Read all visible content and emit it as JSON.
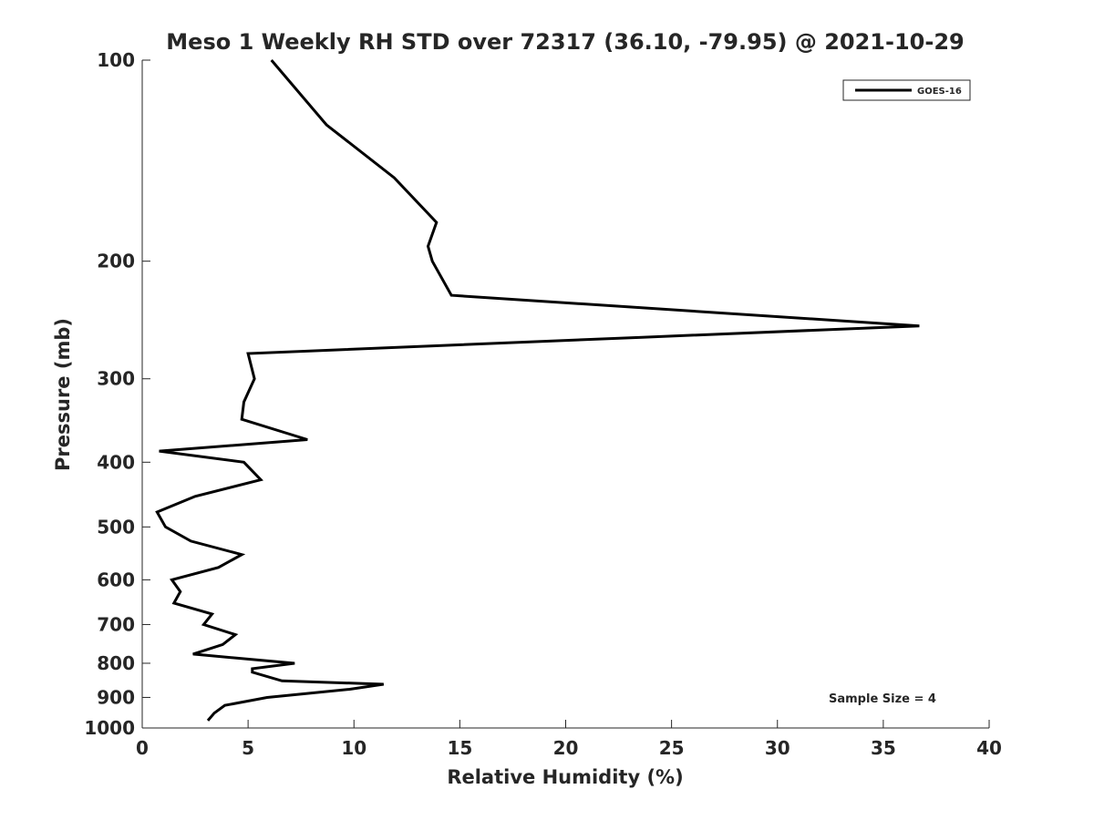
{
  "chart_data": {
    "type": "line",
    "title": "Meso 1 Weekly RH STD over 72317 (36.10, -79.95) @ 2021-10-29",
    "xlabel": "Relative Humidity (%)",
    "ylabel": "Pressure (mb)",
    "xlim": [
      0,
      40
    ],
    "ylim": [
      100,
      1000
    ],
    "y_scale": "log",
    "y_reversed": true,
    "grid": false,
    "legend_position": "top-right",
    "x_ticks": [
      "0",
      "5",
      "10",
      "15",
      "20",
      "25",
      "30",
      "35",
      "40"
    ],
    "y_ticks": [
      "100",
      "200",
      "300",
      "400",
      "500",
      "600",
      "700",
      "800",
      "900",
      "1000"
    ],
    "annotation": "Sample Size = 4",
    "series": [
      {
        "name": "GOES-16",
        "color": "#000000",
        "points": [
          [
            6.1,
            100
          ],
          [
            8.7,
            125
          ],
          [
            11.9,
            150
          ],
          [
            13.9,
            175
          ],
          [
            13.5,
            190
          ],
          [
            13.7,
            200
          ],
          [
            14.6,
            225
          ],
          [
            36.7,
            250
          ],
          [
            23.6,
            260
          ],
          [
            5.0,
            275
          ],
          [
            5.3,
            300
          ],
          [
            4.8,
            325
          ],
          [
            4.7,
            345
          ],
          [
            7.8,
            370
          ],
          [
            0.8,
            385
          ],
          [
            4.8,
            400
          ],
          [
            5.6,
            425
          ],
          [
            2.5,
            450
          ],
          [
            0.7,
            475
          ],
          [
            1.1,
            500
          ],
          [
            2.3,
            525
          ],
          [
            4.7,
            550
          ],
          [
            3.6,
            575
          ],
          [
            1.4,
            600
          ],
          [
            1.8,
            625
          ],
          [
            1.5,
            650
          ],
          [
            3.3,
            675
          ],
          [
            2.9,
            700
          ],
          [
            4.4,
            725
          ],
          [
            3.8,
            750
          ],
          [
            2.4,
            775
          ],
          [
            7.2,
            800
          ],
          [
            5.2,
            815
          ],
          [
            5.2,
            825
          ],
          [
            6.6,
            850
          ],
          [
            11.4,
            860
          ],
          [
            9.8,
            875
          ],
          [
            5.9,
            900
          ],
          [
            3.9,
            925
          ],
          [
            3.4,
            950
          ],
          [
            3.1,
            975
          ]
        ]
      }
    ]
  }
}
